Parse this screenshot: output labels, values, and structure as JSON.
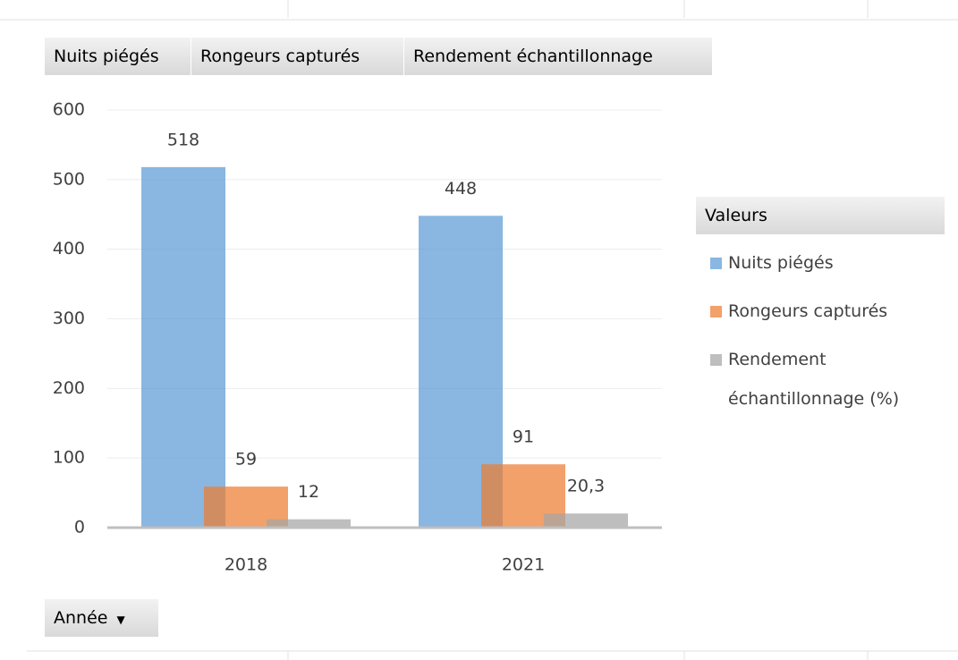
{
  "chart_data": {
    "type": "bar",
    "field_buttons": [
      "Nuits piégés",
      "Rongeurs capturés",
      "Rendement échantillonnage"
    ],
    "axis_field_button": "Année",
    "legend_title": "Valeurs",
    "categories": [
      "2018",
      "2021"
    ],
    "series": [
      {
        "name": "Nuits piégés",
        "color": "#5b9bd5",
        "values": [
          518,
          448
        ]
      },
      {
        "name": "Rongeurs capturés",
        "color": "#ed7d31",
        "values": [
          59,
          91
        ]
      },
      {
        "name": "Rendement échantillonnage (%)",
        "color": "#a5a5a5",
        "values": [
          12,
          20.3
        ],
        "value_labels": [
          "12",
          "20,3"
        ]
      }
    ],
    "ylim": [
      0,
      600
    ],
    "yticks": [
      0,
      100,
      200,
      300,
      400,
      500,
      600
    ],
    "grid": true,
    "legend": "right"
  }
}
